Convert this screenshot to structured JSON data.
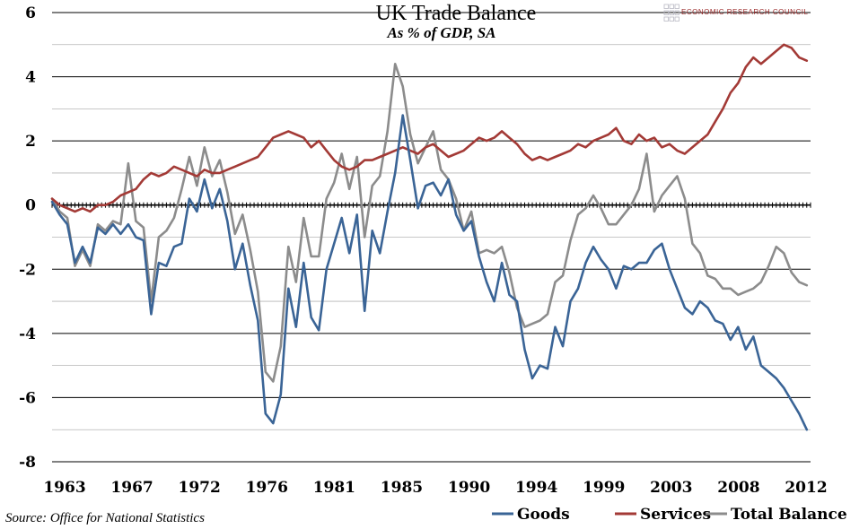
{
  "chart_data": {
    "type": "line",
    "title": "UK Trade Balance",
    "subtitle": "As % of GDP, SA",
    "source": "Source: Office for National Statistics",
    "logo_text": "ECONOMIC RESEARCH COUNCIL",
    "xlabel": "",
    "ylabel": "",
    "xlim": [
      1963,
      2012.75
    ],
    "ylim": [
      -8,
      6
    ],
    "y_ticks": [
      6,
      4,
      2,
      0,
      -2,
      -4,
      -6,
      -8
    ],
    "x_tick_labels": [
      "1963",
      "1967",
      "1972",
      "1976",
      "1981",
      "1985",
      "1990",
      "1994",
      "1999",
      "2003",
      "2008",
      "2012"
    ],
    "grid": "horizontal",
    "legend_position": "bottom-right",
    "colors": {
      "Goods": "#3a6496",
      "Services": "#a33a36",
      "Total Balance": "#8c8c8c"
    },
    "series": [
      {
        "name": "Goods",
        "points": [
          [
            1963.0,
            0.1
          ],
          [
            1963.5,
            -0.3
          ],
          [
            1964.0,
            -0.6
          ],
          [
            1964.5,
            -1.8
          ],
          [
            1965.0,
            -1.3
          ],
          [
            1965.5,
            -1.8
          ],
          [
            1966.0,
            -0.7
          ],
          [
            1966.5,
            -0.9
          ],
          [
            1967.0,
            -0.6
          ],
          [
            1967.5,
            -0.9
          ],
          [
            1968.0,
            -0.6
          ],
          [
            1968.5,
            -1.0
          ],
          [
            1969.0,
            -1.1
          ],
          [
            1969.5,
            -3.4
          ],
          [
            1970.0,
            -1.8
          ],
          [
            1970.5,
            -1.9
          ],
          [
            1971.0,
            -1.3
          ],
          [
            1971.5,
            -1.2
          ],
          [
            1972.0,
            0.2
          ],
          [
            1972.5,
            -0.2
          ],
          [
            1973.0,
            0.8
          ],
          [
            1973.5,
            -0.1
          ],
          [
            1974.0,
            0.5
          ],
          [
            1974.5,
            -0.5
          ],
          [
            1975.0,
            -2.0
          ],
          [
            1975.5,
            -1.2
          ],
          [
            1976.0,
            -2.5
          ],
          [
            1976.5,
            -3.6
          ],
          [
            1977.0,
            -6.5
          ],
          [
            1977.5,
            -6.8
          ],
          [
            1978.0,
            -5.9
          ],
          [
            1978.5,
            -2.6
          ],
          [
            1979.0,
            -3.8
          ],
          [
            1979.5,
            -1.8
          ],
          [
            1980.0,
            -3.5
          ],
          [
            1980.5,
            -3.9
          ],
          [
            1981.0,
            -2.0
          ],
          [
            1981.5,
            -1.2
          ],
          [
            1982.0,
            -0.4
          ],
          [
            1982.5,
            -1.5
          ],
          [
            1983.0,
            -0.3
          ],
          [
            1983.5,
            -3.3
          ],
          [
            1984.0,
            -0.8
          ],
          [
            1984.5,
            -1.5
          ],
          [
            1985.0,
            -0.2
          ],
          [
            1985.5,
            1.0
          ],
          [
            1986.0,
            2.8
          ],
          [
            1986.5,
            1.4
          ],
          [
            1987.0,
            -0.1
          ],
          [
            1987.5,
            0.6
          ],
          [
            1988.0,
            0.7
          ],
          [
            1988.5,
            0.3
          ],
          [
            1989.0,
            0.8
          ],
          [
            1989.5,
            -0.3
          ],
          [
            1990.0,
            -0.8
          ],
          [
            1990.5,
            -0.5
          ],
          [
            1991.0,
            -1.6
          ],
          [
            1991.5,
            -2.4
          ],
          [
            1992.0,
            -3.0
          ],
          [
            1992.5,
            -1.8
          ],
          [
            1993.0,
            -2.8
          ],
          [
            1993.5,
            -3.0
          ],
          [
            1994.0,
            -4.5
          ],
          [
            1994.5,
            -5.4
          ],
          [
            1995.0,
            -5.0
          ],
          [
            1995.5,
            -5.1
          ],
          [
            1996.0,
            -3.8
          ],
          [
            1996.5,
            -4.4
          ],
          [
            1997.0,
            -3.0
          ],
          [
            1997.5,
            -2.6
          ],
          [
            1998.0,
            -1.8
          ],
          [
            1998.5,
            -1.3
          ],
          [
            1999.0,
            -1.7
          ],
          [
            1999.5,
            -2.0
          ],
          [
            2000.0,
            -2.6
          ],
          [
            2000.5,
            -1.9
          ],
          [
            2001.0,
            -2.0
          ],
          [
            2001.5,
            -1.8
          ],
          [
            2002.0,
            -1.8
          ],
          [
            2002.5,
            -1.4
          ],
          [
            2003.0,
            -1.2
          ],
          [
            2003.5,
            -2.0
          ],
          [
            2004.0,
            -2.6
          ],
          [
            2004.5,
            -3.2
          ],
          [
            2005.0,
            -3.4
          ],
          [
            2005.5,
            -3.0
          ],
          [
            2006.0,
            -3.2
          ],
          [
            2006.5,
            -3.6
          ],
          [
            2007.0,
            -3.7
          ],
          [
            2007.5,
            -4.2
          ],
          [
            2008.0,
            -3.8
          ],
          [
            2008.5,
            -4.5
          ],
          [
            2009.0,
            -4.1
          ],
          [
            2009.5,
            -5.0
          ],
          [
            2010.0,
            -5.2
          ],
          [
            2010.5,
            -5.4
          ],
          [
            2011.0,
            -5.7
          ],
          [
            2011.5,
            -6.1
          ],
          [
            2012.0,
            -6.5
          ],
          [
            2012.5,
            -7.0
          ]
        ]
      },
      {
        "name": "Services",
        "points": [
          [
            1963.0,
            0.2
          ],
          [
            1963.5,
            0.0
          ],
          [
            1964.0,
            -0.1
          ],
          [
            1964.5,
            -0.2
          ],
          [
            1965.0,
            -0.1
          ],
          [
            1965.5,
            -0.2
          ],
          [
            1966.0,
            0.0
          ],
          [
            1966.5,
            0.0
          ],
          [
            1967.0,
            0.1
          ],
          [
            1967.5,
            0.3
          ],
          [
            1968.0,
            0.4
          ],
          [
            1968.5,
            0.5
          ],
          [
            1969.0,
            0.8
          ],
          [
            1969.5,
            1.0
          ],
          [
            1970.0,
            0.9
          ],
          [
            1970.5,
            1.0
          ],
          [
            1971.0,
            1.2
          ],
          [
            1971.5,
            1.1
          ],
          [
            1972.0,
            1.0
          ],
          [
            1972.5,
            0.9
          ],
          [
            1973.0,
            1.1
          ],
          [
            1973.5,
            1.0
          ],
          [
            1974.0,
            1.0
          ],
          [
            1974.5,
            1.1
          ],
          [
            1975.0,
            1.2
          ],
          [
            1975.5,
            1.3
          ],
          [
            1976.0,
            1.4
          ],
          [
            1976.5,
            1.5
          ],
          [
            1977.0,
            1.8
          ],
          [
            1977.5,
            2.1
          ],
          [
            1978.0,
            2.2
          ],
          [
            1978.5,
            2.3
          ],
          [
            1979.0,
            2.2
          ],
          [
            1979.5,
            2.1
          ],
          [
            1980.0,
            1.8
          ],
          [
            1980.5,
            2.0
          ],
          [
            1981.0,
            1.7
          ],
          [
            1981.5,
            1.4
          ],
          [
            1982.0,
            1.2
          ],
          [
            1982.5,
            1.1
          ],
          [
            1983.0,
            1.2
          ],
          [
            1983.5,
            1.4
          ],
          [
            1984.0,
            1.4
          ],
          [
            1984.5,
            1.5
          ],
          [
            1985.0,
            1.6
          ],
          [
            1985.5,
            1.7
          ],
          [
            1986.0,
            1.8
          ],
          [
            1986.5,
            1.7
          ],
          [
            1987.0,
            1.6
          ],
          [
            1987.5,
            1.8
          ],
          [
            1988.0,
            1.9
          ],
          [
            1988.5,
            1.7
          ],
          [
            1989.0,
            1.5
          ],
          [
            1989.5,
            1.6
          ],
          [
            1990.0,
            1.7
          ],
          [
            1990.5,
            1.9
          ],
          [
            1991.0,
            2.1
          ],
          [
            1991.5,
            2.0
          ],
          [
            1992.0,
            2.1
          ],
          [
            1992.5,
            2.3
          ],
          [
            1993.0,
            2.1
          ],
          [
            1993.5,
            1.9
          ],
          [
            1994.0,
            1.6
          ],
          [
            1994.5,
            1.4
          ],
          [
            1995.0,
            1.5
          ],
          [
            1995.5,
            1.4
          ],
          [
            1996.0,
            1.5
          ],
          [
            1996.5,
            1.6
          ],
          [
            1997.0,
            1.7
          ],
          [
            1997.5,
            1.9
          ],
          [
            1998.0,
            1.8
          ],
          [
            1998.5,
            2.0
          ],
          [
            1999.0,
            2.1
          ],
          [
            1999.5,
            2.2
          ],
          [
            2000.0,
            2.4
          ],
          [
            2000.5,
            2.0
          ],
          [
            2001.0,
            1.9
          ],
          [
            2001.5,
            2.2
          ],
          [
            2002.0,
            2.0
          ],
          [
            2002.5,
            2.1
          ],
          [
            2003.0,
            1.8
          ],
          [
            2003.5,
            1.9
          ],
          [
            2004.0,
            1.7
          ],
          [
            2004.5,
            1.6
          ],
          [
            2005.0,
            1.8
          ],
          [
            2005.5,
            2.0
          ],
          [
            2006.0,
            2.2
          ],
          [
            2006.5,
            2.6
          ],
          [
            2007.0,
            3.0
          ],
          [
            2007.5,
            3.5
          ],
          [
            2008.0,
            3.8
          ],
          [
            2008.5,
            4.3
          ],
          [
            2009.0,
            4.6
          ],
          [
            2009.5,
            4.4
          ],
          [
            2010.0,
            4.6
          ],
          [
            2010.5,
            4.8
          ],
          [
            2011.0,
            5.0
          ],
          [
            2011.5,
            4.9
          ],
          [
            2012.0,
            4.6
          ],
          [
            2012.5,
            4.5
          ]
        ]
      },
      {
        "name": "Total Balance",
        "points": [
          [
            1963.0,
            0.2
          ],
          [
            1963.5,
            -0.2
          ],
          [
            1964.0,
            -0.4
          ],
          [
            1964.5,
            -1.9
          ],
          [
            1965.0,
            -1.4
          ],
          [
            1965.5,
            -1.9
          ],
          [
            1966.0,
            -0.6
          ],
          [
            1966.5,
            -0.8
          ],
          [
            1967.0,
            -0.5
          ],
          [
            1967.5,
            -0.6
          ],
          [
            1968.0,
            1.3
          ],
          [
            1968.5,
            -0.5
          ],
          [
            1969.0,
            -0.7
          ],
          [
            1969.5,
            -3.0
          ],
          [
            1970.0,
            -1.0
          ],
          [
            1970.5,
            -0.8
          ],
          [
            1971.0,
            -0.4
          ],
          [
            1971.5,
            0.5
          ],
          [
            1972.0,
            1.5
          ],
          [
            1972.5,
            0.6
          ],
          [
            1973.0,
            1.8
          ],
          [
            1973.5,
            0.9
          ],
          [
            1974.0,
            1.4
          ],
          [
            1974.5,
            0.4
          ],
          [
            1975.0,
            -0.9
          ],
          [
            1975.5,
            -0.3
          ],
          [
            1976.0,
            -1.4
          ],
          [
            1976.5,
            -2.7
          ],
          [
            1977.0,
            -5.2
          ],
          [
            1977.5,
            -5.5
          ],
          [
            1978.0,
            -4.4
          ],
          [
            1978.5,
            -1.3
          ],
          [
            1979.0,
            -2.4
          ],
          [
            1979.5,
            -0.4
          ],
          [
            1980.0,
            -1.6
          ],
          [
            1980.5,
            -1.6
          ],
          [
            1981.0,
            0.2
          ],
          [
            1981.5,
            0.7
          ],
          [
            1982.0,
            1.6
          ],
          [
            1982.5,
            0.5
          ],
          [
            1983.0,
            1.5
          ],
          [
            1983.5,
            -1.0
          ],
          [
            1984.0,
            0.6
          ],
          [
            1984.5,
            0.9
          ],
          [
            1985.0,
            2.3
          ],
          [
            1985.5,
            4.4
          ],
          [
            1986.0,
            3.7
          ],
          [
            1986.5,
            2.2
          ],
          [
            1987.0,
            1.3
          ],
          [
            1987.5,
            1.8
          ],
          [
            1988.0,
            2.3
          ],
          [
            1988.5,
            1.1
          ],
          [
            1989.0,
            0.8
          ],
          [
            1989.5,
            0.2
          ],
          [
            1990.0,
            -0.8
          ],
          [
            1990.5,
            -0.2
          ],
          [
            1991.0,
            -1.5
          ],
          [
            1991.5,
            -1.4
          ],
          [
            1992.0,
            -1.5
          ],
          [
            1992.5,
            -1.3
          ],
          [
            1993.0,
            -2.1
          ],
          [
            1993.5,
            -3.2
          ],
          [
            1994.0,
            -3.8
          ],
          [
            1994.5,
            -3.7
          ],
          [
            1995.0,
            -3.6
          ],
          [
            1995.5,
            -3.4
          ],
          [
            1996.0,
            -2.4
          ],
          [
            1996.5,
            -2.2
          ],
          [
            1997.0,
            -1.1
          ],
          [
            1997.5,
            -0.3
          ],
          [
            1998.0,
            -0.1
          ],
          [
            1998.5,
            0.3
          ],
          [
            1999.0,
            -0.1
          ],
          [
            1999.5,
            -0.6
          ],
          [
            2000.0,
            -0.6
          ],
          [
            2000.5,
            -0.3
          ],
          [
            2001.0,
            0.0
          ],
          [
            2001.5,
            0.5
          ],
          [
            2002.0,
            1.6
          ],
          [
            2002.5,
            -0.2
          ],
          [
            2003.0,
            0.3
          ],
          [
            2003.5,
            0.6
          ],
          [
            2004.0,
            0.9
          ],
          [
            2004.5,
            0.2
          ],
          [
            2005.0,
            -1.2
          ],
          [
            2005.5,
            -1.5
          ],
          [
            2006.0,
            -2.2
          ],
          [
            2006.5,
            -2.3
          ],
          [
            2007.0,
            -2.6
          ],
          [
            2007.5,
            -2.6
          ],
          [
            2008.0,
            -2.8
          ],
          [
            2008.5,
            -2.7
          ],
          [
            2009.0,
            -2.6
          ],
          [
            2009.5,
            -2.4
          ],
          [
            2010.0,
            -1.9
          ],
          [
            2010.5,
            -1.3
          ],
          [
            2011.0,
            -1.5
          ],
          [
            2011.5,
            -2.1
          ],
          [
            2012.0,
            -2.4
          ],
          [
            2012.5,
            -2.5
          ]
        ]
      }
    ]
  }
}
